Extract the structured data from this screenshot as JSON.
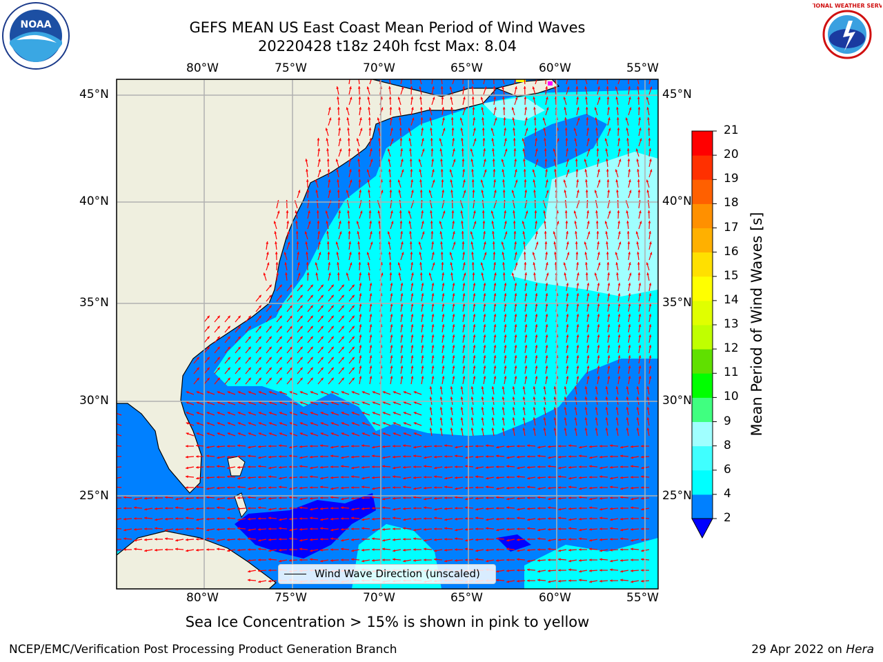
{
  "header": {
    "title_line1": "GEFS MEAN US East Coast Mean Period of Wind Waves",
    "title_line2": "20220428 t18z 240h fcst   Max: 8.04"
  },
  "logos": {
    "noaa_text": "NOAA",
    "nws_text": "NATIONAL WEATHER SERVICE"
  },
  "map": {
    "lon_labels": [
      "80°W",
      "75°W",
      "70°W",
      "65°W",
      "60°W",
      "55°W"
    ],
    "lat_labels": [
      "45°N",
      "40°N",
      "35°N",
      "30°N",
      "25°N"
    ],
    "land_color": "#efefdf",
    "vector_color": "#ff0000",
    "gridline_color": "#b0b0b0",
    "legend_label": "Wind Wave Direction (unscaled)"
  },
  "colorbar": {
    "title": "Mean Period of Wind Waves [s]",
    "tick_labels": [
      "2",
      "4",
      "6",
      "8",
      "9",
      "10",
      "11",
      "12",
      "13",
      "14",
      "15",
      "16",
      "17",
      "18",
      "19",
      "20",
      "21"
    ],
    "colors": [
      "#0000ff",
      "#0080ff",
      "#00ffff",
      "#40ffff",
      "#a0ffff",
      "#40ff80",
      "#00ff00",
      "#60e000",
      "#c0ff00",
      "#e0ff00",
      "#ffff00",
      "#ffe000",
      "#ffb000",
      "#ff9000",
      "#ff6000",
      "#ff3000",
      "#ff0000"
    ],
    "underflow_color": "#0000ff"
  },
  "footer": {
    "caption": "Sea Ice Concentration > 15% is shown in pink to yellow",
    "left": "NCEP/EMC/Verification Post Processing Product Generation Branch",
    "date": "29 Apr 2022 on ",
    "host": "Hera"
  }
}
